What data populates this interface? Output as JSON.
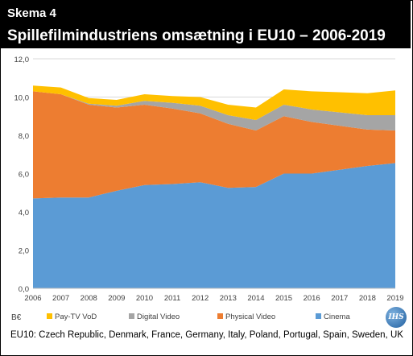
{
  "header": {
    "kicker": "Skema 4",
    "title": "Spillefilmindustriens omsætning i EU10 – 2006-2019"
  },
  "legend": {
    "unit": "B€"
  },
  "footnote": "EU10: Czech Republic, Denmark, France, Germany, Italy, Poland, Portugal, Spain, Sweden, UK",
  "logo": {
    "text": "IHS"
  },
  "colors": {
    "cinema": "#5b9bd5",
    "physical_video": "#ed7d31",
    "digital_video": "#a5a5a5",
    "pay_tv_vod": "#ffc000"
  },
  "chart_data": {
    "type": "area",
    "stacked": true,
    "x": [
      "2006",
      "2007",
      "2008",
      "2009",
      "2010",
      "2011",
      "2012",
      "2013",
      "2014",
      "2015",
      "2016",
      "2017",
      "2018",
      "2019"
    ],
    "ylim": [
      0,
      12
    ],
    "yticks": [
      "0,0",
      "2,0",
      "4,0",
      "6,0",
      "8,0",
      "10,0",
      "12,0"
    ],
    "grid": true,
    "legend_position": "bottom",
    "series": [
      {
        "name": "Cinema",
        "color": "#5b9bd5",
        "values": [
          4.7,
          4.75,
          4.75,
          5.1,
          5.4,
          5.45,
          5.55,
          5.25,
          5.3,
          6.0,
          6.0,
          6.2,
          6.4,
          6.55
        ]
      },
      {
        "name": "Physical Video",
        "color": "#ed7d31",
        "values": [
          5.6,
          5.4,
          4.85,
          4.35,
          4.2,
          3.95,
          3.6,
          3.35,
          2.95,
          3.0,
          2.7,
          2.3,
          1.9,
          1.7
        ]
      },
      {
        "name": "Digital Video",
        "color": "#a5a5a5",
        "values": [
          0.0,
          0.0,
          0.05,
          0.1,
          0.2,
          0.3,
          0.4,
          0.45,
          0.55,
          0.6,
          0.65,
          0.7,
          0.75,
          0.8
        ]
      },
      {
        "name": "Pay-TV VoD",
        "color": "#ffc000",
        "values": [
          0.3,
          0.35,
          0.3,
          0.3,
          0.35,
          0.35,
          0.45,
          0.55,
          0.65,
          0.8,
          0.95,
          1.05,
          1.15,
          1.3
        ]
      }
    ],
    "legend_order": [
      "Pay-TV VoD",
      "Digital Video",
      "Physical Video",
      "Cinema"
    ]
  }
}
